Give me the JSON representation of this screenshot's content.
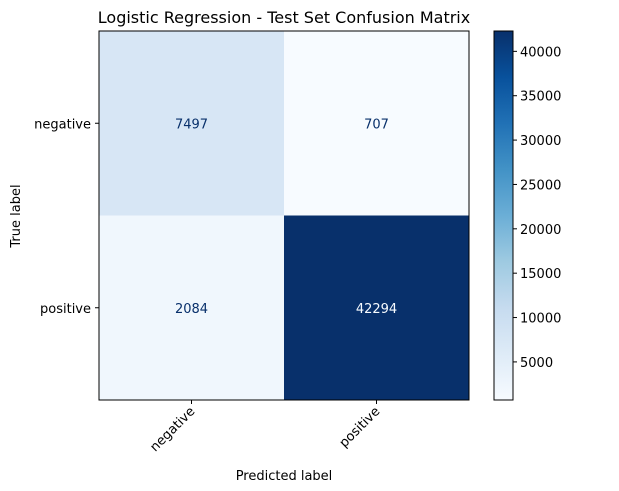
{
  "chart_data": {
    "type": "heatmap",
    "title": "Logistic Regression - Test Set Confusion Matrix",
    "xlabel": "Predicted label",
    "ylabel": "True label",
    "x_categories": [
      "negative",
      "positive"
    ],
    "y_categories": [
      "negative",
      "positive"
    ],
    "matrix": [
      [
        7497,
        707
      ],
      [
        2084,
        42294
      ]
    ],
    "colormap": "Blues",
    "colorbar": {
      "ticks": [
        5000,
        10000,
        15000,
        20000,
        25000,
        30000,
        35000,
        40000
      ],
      "range": [
        707,
        42294
      ]
    },
    "grid": false
  }
}
